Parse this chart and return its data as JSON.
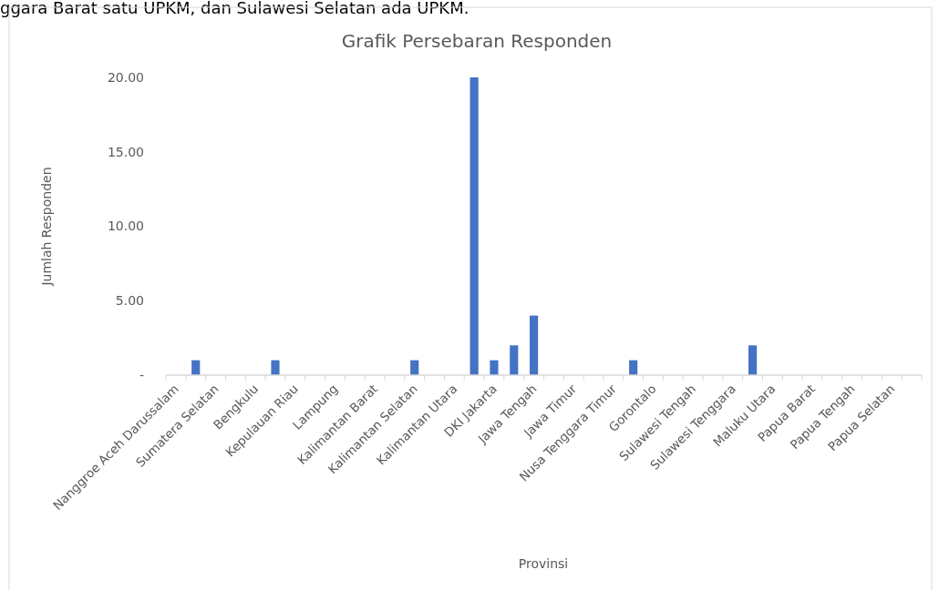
{
  "chart_data": {
    "type": "bar",
    "title": "Grafik Persebaran Responden",
    "xlabel": "Provinsi",
    "ylabel": "Jumlah Responden",
    "annotations": [
      "ggara Barat satu UPKM, dan Sulawesi Selatan ada UPKM."
    ],
    "categories": [
      "Nanggroe Aceh Darussalam",
      null,
      "Sumatera Selatan",
      null,
      "Bengkulu",
      null,
      "Kepulauan Riau",
      null,
      "Lampung",
      null,
      "Kalimantan Barat",
      null,
      "Kalimantan Selatan",
      null,
      "Kalimantan Utara",
      null,
      "DKI Jakarta",
      null,
      "Jawa Tengah",
      null,
      "Jawa Timur",
      null,
      "Nusa Tenggara Timur",
      null,
      "Gorontalo",
      null,
      "Sulawesi Tengah",
      null,
      "Sulawesi Tenggara",
      null,
      "Maluku Utara",
      null,
      "Papua Barat",
      null,
      "Papua Tengah",
      null,
      "Papua Selatan",
      null
    ],
    "values": [
      0,
      1,
      0,
      0,
      0,
      1,
      0,
      0,
      0,
      0,
      0,
      0,
      1,
      0,
      0,
      20,
      1,
      2,
      4,
      0,
      0,
      0,
      0,
      1,
      0,
      0,
      0,
      0,
      0,
      2,
      0,
      0,
      0,
      0,
      0,
      0,
      0,
      0
    ],
    "color": "#4472c4",
    "ylim": [
      0,
      20
    ],
    "yticks": [
      {
        "value": 0,
        "label": "-"
      },
      {
        "value": 5,
        "label": "5.00"
      },
      {
        "value": 10,
        "label": "10.00"
      },
      {
        "value": 15,
        "label": "15.00"
      },
      {
        "value": 20,
        "label": "20.00"
      }
    ],
    "grid": false
  }
}
